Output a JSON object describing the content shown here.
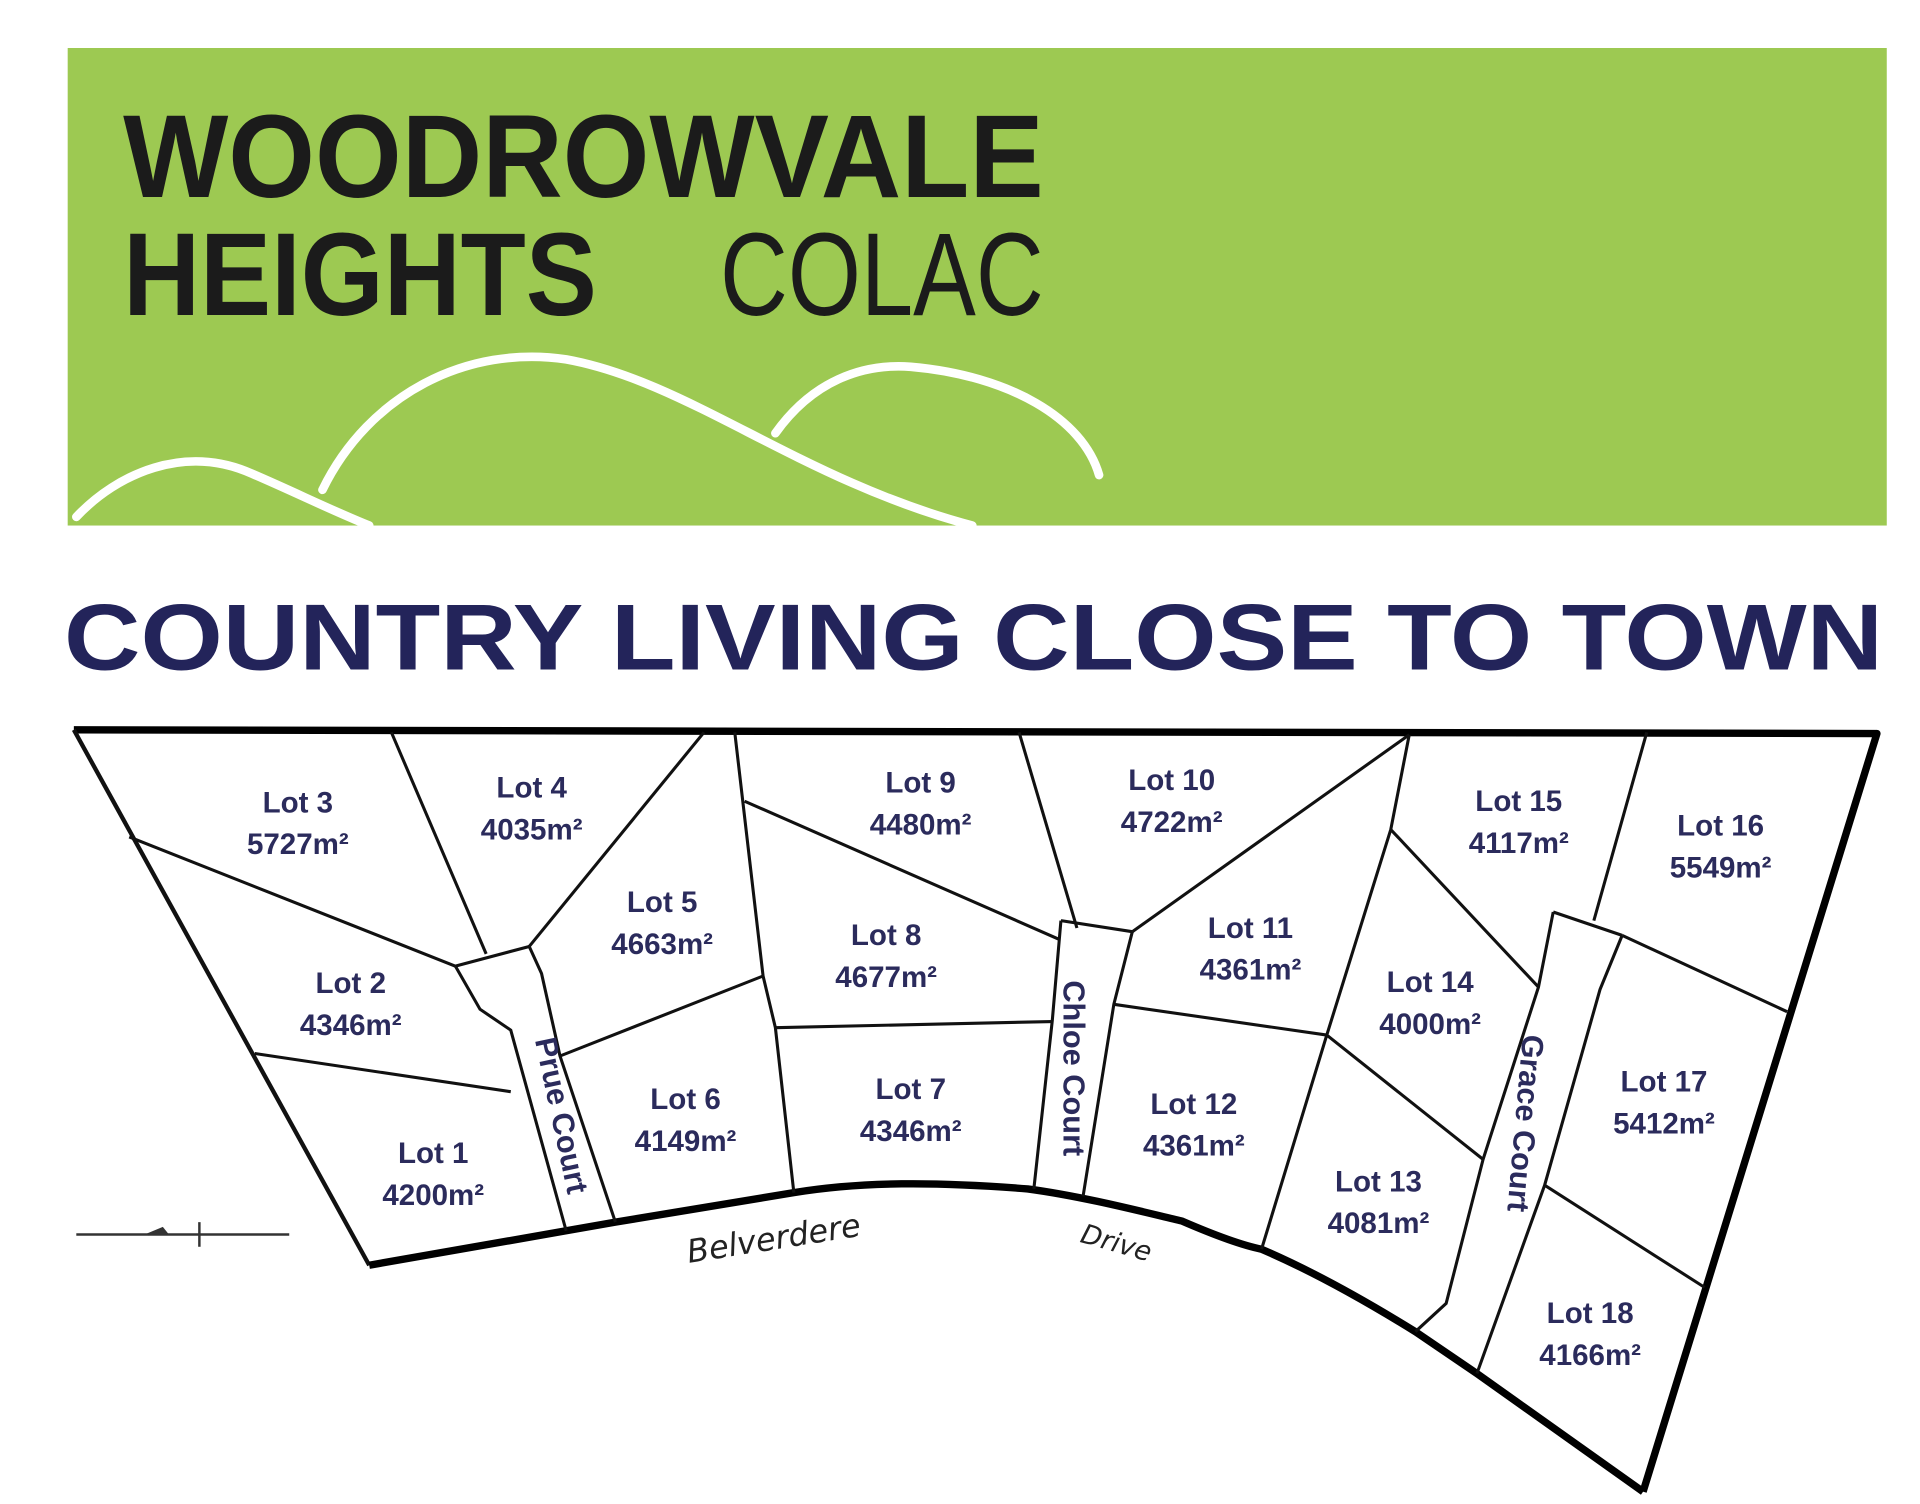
{
  "banner": {
    "line1": "WOODROWVALE",
    "line2a": "HEIGHTS",
    "line2b": "COLAC",
    "color": "#9dc952"
  },
  "tagline": "COUNTRY LIVING CLOSE TO TOWN",
  "map": {
    "lots": [
      {
        "name": "Lot 1",
        "area": "4200m²"
      },
      {
        "name": "Lot 2",
        "area": "4346m²"
      },
      {
        "name": "Lot 3",
        "area": "5727m²"
      },
      {
        "name": "Lot 4",
        "area": "4035m²"
      },
      {
        "name": "Lot 5",
        "area": "4663m²"
      },
      {
        "name": "Lot 6",
        "area": "4149m²"
      },
      {
        "name": "Lot 7",
        "area": "4346m²"
      },
      {
        "name": "Lot 8",
        "area": "4677m²"
      },
      {
        "name": "Lot 9",
        "area": "4480m²"
      },
      {
        "name": "Lot 10",
        "area": "4722m²"
      },
      {
        "name": "Lot 11",
        "area": "4361m²"
      },
      {
        "name": "Lot 12",
        "area": "4361m²"
      },
      {
        "name": "Lot 13",
        "area": "4081m²"
      },
      {
        "name": "Lot 14",
        "area": "4000m²"
      },
      {
        "name": "Lot 15",
        "area": "4117m²"
      },
      {
        "name": "Lot 16",
        "area": "5549m²"
      },
      {
        "name": "Lot 17",
        "area": "5412m²"
      },
      {
        "name": "Lot 18",
        "area": "4166m²"
      }
    ],
    "courts": [
      "Prue Court",
      "Chloe Court",
      "Grace Court"
    ],
    "road": [
      "Belverdere",
      "Drive"
    ],
    "text_color": "#2b2b5c"
  }
}
